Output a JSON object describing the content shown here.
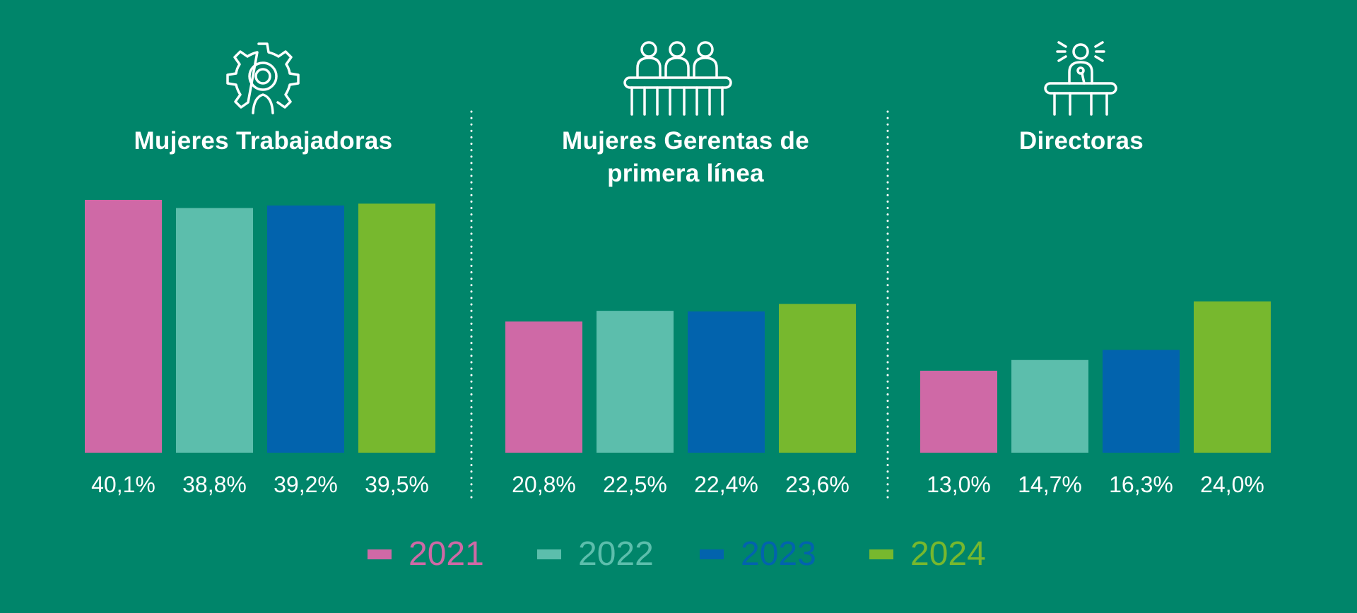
{
  "colors": {
    "background": "#00856a",
    "2021": "#cf69a6",
    "2022": "#5cbeac",
    "2023": "#0263ad",
    "2024": "#77b82e",
    "text": "#ffffff"
  },
  "chart_data": [
    {
      "type": "bar",
      "title": "Mujeres Trabajadoras",
      "icon": "gear-person-icon",
      "categories": [
        "2021",
        "2022",
        "2023",
        "2024"
      ],
      "values": [
        40.1,
        38.8,
        39.2,
        39.5
      ],
      "value_labels": [
        "40,1%",
        "38,8%",
        "39,2%",
        "39,5%"
      ],
      "unit": "%",
      "ylim": [
        0,
        40.1
      ]
    },
    {
      "type": "bar",
      "title": "Mujeres Gerentas de primera línea",
      "title_lines": [
        "Mujeres Gerentas de",
        "primera línea"
      ],
      "icon": "panel-meeting-icon",
      "categories": [
        "2021",
        "2022",
        "2023",
        "2024"
      ],
      "values": [
        20.8,
        22.5,
        22.4,
        23.6
      ],
      "value_labels": [
        "20,8%",
        "22,5%",
        "22,4%",
        "23,6%"
      ],
      "unit": "%",
      "ylim": [
        0,
        40.1
      ]
    },
    {
      "type": "bar",
      "title": "Directoras",
      "icon": "speaker-podium-icon",
      "categories": [
        "2021",
        "2022",
        "2023",
        "2024"
      ],
      "values": [
        13.0,
        14.7,
        16.3,
        24.0
      ],
      "value_labels": [
        "13,0%",
        "14,7%",
        "16,3%",
        "24,0%"
      ],
      "unit": "%",
      "ylim": [
        0,
        40.1
      ]
    }
  ],
  "legend": [
    {
      "label": "2021",
      "color": "#cf69a6"
    },
    {
      "label": "2022",
      "color": "#5cbeac"
    },
    {
      "label": "2023",
      "color": "#0263ad"
    },
    {
      "label": "2024",
      "color": "#77b82e"
    }
  ]
}
